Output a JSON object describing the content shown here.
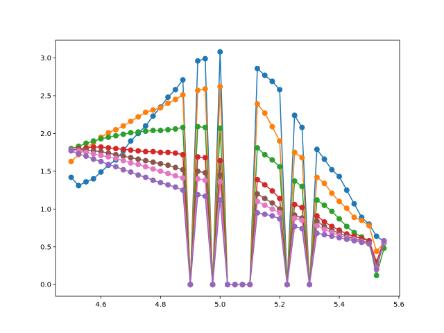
{
  "chart_data": {
    "type": "line",
    "x": [
      4.5,
      4.525,
      4.55,
      4.575,
      4.6,
      4.625,
      4.65,
      4.675,
      4.7,
      4.725,
      4.75,
      4.775,
      4.8,
      4.825,
      4.85,
      4.875,
      4.9,
      4.925,
      4.95,
      4.975,
      5.0,
      5.025,
      5.05,
      5.075,
      5.1,
      5.125,
      5.15,
      5.175,
      5.2,
      5.225,
      5.25,
      5.275,
      5.3,
      5.325,
      5.35,
      5.375,
      5.4,
      5.425,
      5.45,
      5.475,
      5.5,
      5.525,
      5.55
    ],
    "series": [
      {
        "color": "#1f77b4",
        "values": [
          1.42,
          1.31,
          1.36,
          1.4,
          1.49,
          1.58,
          1.65,
          1.77,
          1.9,
          2.0,
          2.1,
          2.23,
          2.35,
          2.48,
          2.58,
          2.71,
          0,
          2.96,
          2.99,
          0,
          3.08,
          0,
          0,
          0,
          0,
          2.86,
          2.77,
          2.69,
          2.58,
          0,
          2.24,
          2.08,
          0,
          1.79,
          1.66,
          1.52,
          1.43,
          1.25,
          1.07,
          0.89,
          0.8,
          0.64,
          0.57
        ]
      },
      {
        "color": "#ff7f0e",
        "values": [
          1.63,
          1.72,
          1.8,
          1.88,
          1.95,
          2.01,
          2.05,
          2.1,
          2.16,
          2.22,
          2.28,
          2.31,
          2.34,
          2.4,
          2.45,
          2.51,
          0,
          2.57,
          2.59,
          0,
          2.62,
          0,
          0,
          0,
          0,
          2.39,
          2.27,
          2.09,
          1.9,
          0,
          1.75,
          1.68,
          0,
          1.42,
          1.34,
          1.21,
          1.1,
          1.01,
          0.89,
          0.85,
          0.78,
          0.44,
          0.55
        ]
      },
      {
        "color": "#2ca02c",
        "values": [
          1.8,
          1.83,
          1.87,
          1.9,
          1.93,
          1.95,
          1.97,
          1.99,
          2.01,
          2.02,
          2.03,
          2.04,
          2.04,
          2.05,
          2.06,
          2.08,
          0,
          2.09,
          2.08,
          0,
          2.07,
          0,
          0,
          0,
          0,
          1.81,
          1.72,
          1.65,
          1.56,
          0,
          1.37,
          1.3,
          0,
          1.12,
          1.05,
          0.97,
          0.87,
          0.77,
          0.69,
          0.63,
          0.58,
          0.12,
          0.48
        ]
      },
      {
        "color": "#d62728",
        "values": [
          1.78,
          1.8,
          1.81,
          1.82,
          1.82,
          1.81,
          1.8,
          1.79,
          1.78,
          1.77,
          1.76,
          1.76,
          1.75,
          1.75,
          1.74,
          1.72,
          0,
          1.69,
          1.68,
          0,
          1.64,
          0,
          0,
          0,
          0,
          1.39,
          1.32,
          1.24,
          1.14,
          0,
          1.06,
          1.02,
          0,
          0.91,
          0.83,
          0.77,
          0.72,
          0.67,
          0.64,
          0.61,
          0.58,
          0.3,
          0.58
        ]
      },
      {
        "color": "#8c564b",
        "values": [
          1.79,
          1.79,
          1.78,
          1.77,
          1.76,
          1.74,
          1.72,
          1.7,
          1.68,
          1.66,
          1.64,
          1.62,
          1.6,
          1.58,
          1.55,
          1.52,
          0,
          1.5,
          1.48,
          0,
          1.45,
          0,
          0,
          0,
          0,
          1.2,
          1.14,
          1.08,
          1.0,
          0,
          0.92,
          0.88,
          0,
          0.84,
          0.77,
          0.72,
          0.68,
          0.64,
          0.61,
          0.58,
          0.55,
          0.25,
          0.55
        ]
      },
      {
        "color": "#e377c2",
        "values": [
          1.78,
          1.77,
          1.75,
          1.73,
          1.71,
          1.69,
          1.67,
          1.64,
          1.61,
          1.59,
          1.56,
          1.53,
          1.5,
          1.47,
          1.44,
          1.41,
          0,
          1.4,
          1.38,
          0,
          1.36,
          0,
          0,
          0,
          0,
          1.1,
          1.05,
          1.0,
          0.95,
          0,
          0.88,
          0.85,
          0,
          0.78,
          0.73,
          0.69,
          0.65,
          0.62,
          0.6,
          0.57,
          0.54,
          0.22,
          0.56
        ]
      },
      {
        "color": "#9467bd",
        "values": [
          1.77,
          1.73,
          1.7,
          1.66,
          1.63,
          1.59,
          1.56,
          1.52,
          1.49,
          1.45,
          1.42,
          1.38,
          1.35,
          1.32,
          1.29,
          1.25,
          0,
          1.19,
          1.17,
          0,
          1.12,
          0,
          0,
          0,
          0,
          0.95,
          0.93,
          0.91,
          0.87,
          0,
          0.77,
          0.74,
          0,
          0.68,
          0.66,
          0.64,
          0.62,
          0.6,
          0.58,
          0.56,
          0.54,
          0.2,
          0.58
        ]
      }
    ],
    "xlim": [
      4.4475,
      5.6025
    ],
    "ylim": [
      -0.154,
      3.234
    ],
    "xticks": [
      4.6,
      4.8,
      {
        "value": 5.0,
        "label": "5.0"
      },
      5.2,
      5.4,
      5.6
    ],
    "yticks": [
      {
        "value": 0,
        "label": "0.0"
      },
      0.5,
      {
        "value": 1,
        "label": "1.0"
      },
      1.5,
      {
        "value": 2,
        "label": "2.0"
      },
      2.5,
      {
        "value": 3,
        "label": "3.0"
      }
    ]
  }
}
